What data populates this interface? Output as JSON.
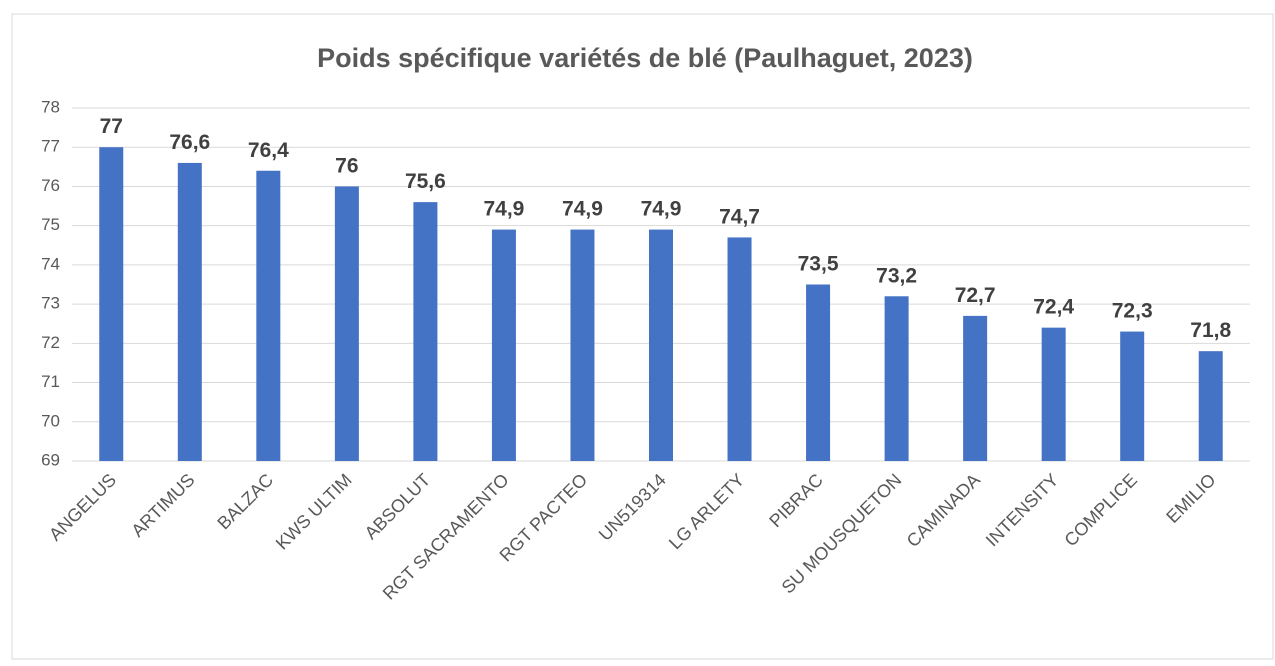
{
  "chart_data": {
    "type": "bar",
    "title": "Poids spécifique variétés de blé (Paulhaguet, 2023)",
    "categories": [
      "ANGELUS",
      "ARTIMUS",
      "BALZAC",
      "KWS ULTIM",
      "ABSOLUT",
      "RGT SACRAMENTO",
      "RGT PACTEO",
      "UN519314",
      "LG ARLETY",
      "PIBRAC",
      "SU MOUSQUETON",
      "CAMINADA",
      "INTENSITY",
      "COMPLICE",
      "EMILIO"
    ],
    "values": [
      77,
      76.6,
      76.4,
      76,
      75.6,
      74.9,
      74.9,
      74.9,
      74.7,
      73.5,
      73.2,
      72.7,
      72.4,
      72.3,
      71.8
    ],
    "value_labels": [
      "77",
      "76,6",
      "76,4",
      "76",
      "75,6",
      "74,9",
      "74,9",
      "74,9",
      "74,7",
      "73,5",
      "73,2",
      "72,7",
      "72,4",
      "72,3",
      "71,8"
    ],
    "color": "#4472c4",
    "ylim": [
      69,
      78
    ],
    "yticks": [
      69,
      70,
      71,
      72,
      73,
      74,
      75,
      76,
      77,
      78
    ],
    "grid": true
  }
}
